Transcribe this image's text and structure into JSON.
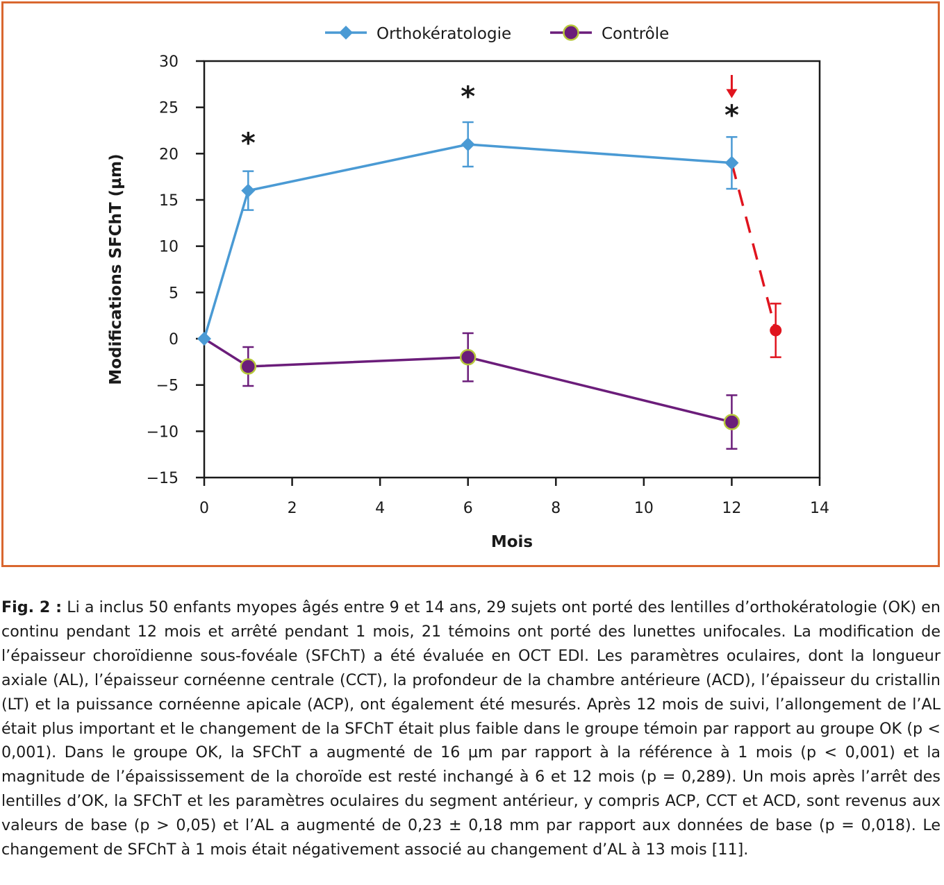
{
  "chart_data": {
    "type": "line",
    "xlabel": "Mois",
    "ylabel": "Modifications SFChT (µm)",
    "xlim": [
      0,
      14
    ],
    "ylim": [
      -15,
      30
    ],
    "xticks": [
      0,
      2,
      4,
      6,
      8,
      10,
      12,
      14
    ],
    "yticks": [
      -15,
      -10,
      -5,
      0,
      5,
      10,
      15,
      20,
      25,
      30
    ],
    "xtick_labels": [
      "0",
      "2",
      "4",
      "6",
      "8",
      "10",
      "12",
      "14"
    ],
    "ytick_labels": [
      "−15",
      "−10",
      "−5",
      "0",
      "5",
      "10",
      "15",
      "20",
      "25",
      "30"
    ],
    "grid": false,
    "legend_position": "top-center",
    "series": [
      {
        "name": "Orthokératologie",
        "color": "#4a9ad4",
        "marker": "diamond",
        "x": [
          0,
          1,
          6,
          12
        ],
        "y": [
          0,
          16,
          21,
          19
        ],
        "err": [
          0,
          2.1,
          2.4,
          2.8
        ]
      },
      {
        "name": "Contrôle",
        "color": "#6b1d7a",
        "marker_fill": "#6b1d7a",
        "marker_edge": "#b7c83a",
        "marker": "circle",
        "x": [
          0,
          1,
          6,
          12
        ],
        "y": [
          0,
          -3,
          -2,
          -9
        ],
        "err": [
          0,
          2.1,
          2.6,
          2.9
        ]
      }
    ],
    "withdrawal_point": {
      "color": "#e0141e",
      "x": 13,
      "y": 0.9,
      "err": 2.9,
      "from_x": 12,
      "from_y": 19,
      "arrow_x": 12,
      "arrow_y_top": 28.5,
      "arrow_y_bottom": 26
    },
    "annotations": [
      {
        "text": "*",
        "x": 1,
        "y": 21.5
      },
      {
        "text": "*",
        "x": 6,
        "y": 26.5
      },
      {
        "text": "*",
        "x": 12,
        "y": 24.5
      }
    ]
  },
  "caption": {
    "label": "Fig. 2 :",
    "text": "Li a inclus 50 enfants myopes âgés entre 9 et 14 ans, 29 sujets ont porté des lentilles d’orthokératologie (OK) en continu pendant 12 mois et arrêté pendant 1 mois, 21 témoins ont porté des lunettes unifocales. La modification de l’épaisseur choroïdienne sous-fovéale (SFChT) a été évaluée en OCT EDI. Les paramètres oculaires, dont la longueur axiale (AL), l’épaisseur cornéenne centrale (CCT), la profondeur de la chambre antérieure (ACD), l’épaisseur du cristallin (LT) et la puissance cornéenne apicale (ACP), ont également été mesurés. Après 12 mois de suivi, l’allongement de l’AL était plus important et le changement de la SFChT était plus faible dans le groupe témoin par rapport au groupe OK (p < 0,001). Dans le groupe OK, la SFChT a augmenté de 16 µm par rapport à la référence à 1 mois (p < 0,001) et la magnitude de l’épaississement de la choroïde est resté inchangé à 6 et 12 mois (p = 0,289). Un mois après l’arrêt des lentilles d’OK, la SFChT et les paramètres oculaires du segment antérieur, y compris ACP, CCT et ACD, sont revenus aux valeurs de base (p > 0,05) et l’AL a augmenté de 0,23 ± 0,18 mm par rapport aux données de base (p = 0,018). Le changement de SFChT à 1 mois était négativement associé au changement d’AL à 13 mois [11]."
  },
  "colors": {
    "frame": "#d9672f",
    "ortho": "#4a9ad4",
    "control": "#6b1d7a",
    "control_edge": "#b7c83a",
    "withdrawal": "#e0141e"
  }
}
